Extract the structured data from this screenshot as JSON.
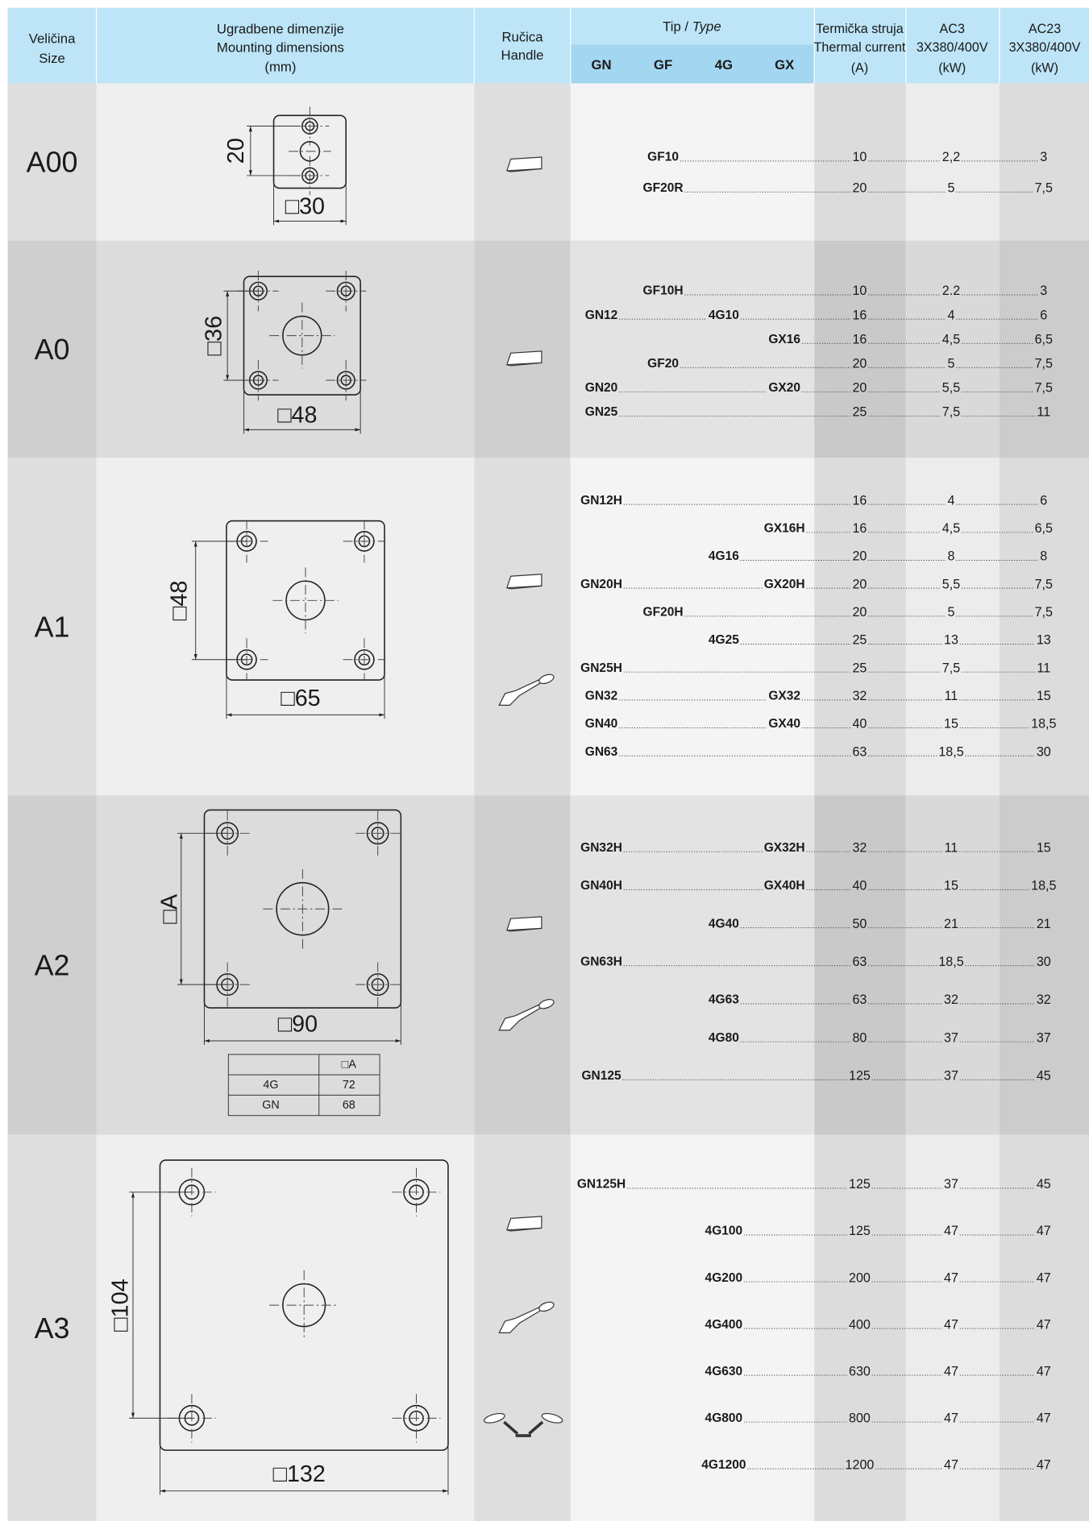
{
  "header": {
    "size": [
      "Veličina",
      "Size"
    ],
    "dimensions": [
      "Ugradbene dimenzije",
      "Mounting dimensions",
      "(mm)"
    ],
    "handle": [
      "Ručica",
      "Handle"
    ],
    "type": {
      "tip": "Tip /",
      "type": "Type"
    },
    "type_columns": [
      "GN",
      "GF",
      "4G",
      "GX"
    ],
    "thermal": [
      "Termička struja",
      "Thermal current",
      "(A)"
    ],
    "ac3": [
      "AC3",
      "3X380/400V",
      "(kW)"
    ],
    "ac23": [
      "AC23",
      "3X380/400V",
      "(kW)"
    ]
  },
  "sections": [
    {
      "size": "A00",
      "dims": {
        "vertical": "20",
        "horizontal": "□30"
      },
      "rows": [
        {
          "GF": "GF10",
          "thermal": "10",
          "ac3": "2,2",
          "ac23": "3"
        },
        {
          "GF": "GF20R",
          "thermal": "20",
          "ac3": "5",
          "ac23": "7,5"
        }
      ]
    },
    {
      "size": "A0",
      "dims": {
        "vertical": "□36",
        "horizontal": "□48"
      },
      "rows": [
        {
          "GF": "GF10H",
          "thermal": "10",
          "ac3": "2.2",
          "ac23": "3"
        },
        {
          "GN": "GN12",
          "4G": "4G10",
          "thermal": "16",
          "ac3": "4",
          "ac23": "6"
        },
        {
          "GX": "GX16",
          "thermal": "16",
          "ac3": "4,5",
          "ac23": "6,5"
        },
        {
          "GF": "GF20",
          "thermal": "20",
          "ac3": "5",
          "ac23": "7,5"
        },
        {
          "GN": "GN20",
          "GX": "GX20",
          "thermal": "20",
          "ac3": "5,5",
          "ac23": "7,5"
        },
        {
          "GN": "GN25",
          "thermal": "25",
          "ac3": "7,5",
          "ac23": "11"
        }
      ]
    },
    {
      "size": "A1",
      "dims": {
        "vertical": "□48",
        "horizontal": "□65"
      },
      "rows": [
        {
          "GN": "GN12H",
          "thermal": "16",
          "ac3": "4",
          "ac23": "6"
        },
        {
          "GX": "GX16H",
          "thermal": "16",
          "ac3": "4,5",
          "ac23": "6,5"
        },
        {
          "4G": "4G16",
          "thermal": "20",
          "ac3": "8",
          "ac23": "8"
        },
        {
          "GN": "GN20H",
          "GX": "GX20H",
          "thermal": "20",
          "ac3": "5,5",
          "ac23": "7,5"
        },
        {
          "GF": "GF20H",
          "thermal": "20",
          "ac3": "5",
          "ac23": "7,5"
        },
        {
          "4G": "4G25",
          "thermal": "25",
          "ac3": "13",
          "ac23": "13"
        },
        {
          "GN": "GN25H",
          "thermal": "25",
          "ac3": "7,5",
          "ac23": "11"
        },
        {
          "GN": "GN32",
          "GX": "GX32",
          "thermal": "32",
          "ac3": "11",
          "ac23": "15"
        },
        {
          "GN": "GN40",
          "GX": "GX40",
          "thermal": "40",
          "ac3": "15",
          "ac23": "18,5"
        },
        {
          "GN": "GN63",
          "thermal": "63",
          "ac3": "18,5",
          "ac23": "30"
        }
      ]
    },
    {
      "size": "A2",
      "dims": {
        "vertical": "□A",
        "horizontal": "□90"
      },
      "dims_table": {
        "header": "□A",
        "rows": [
          [
            "4G",
            "72"
          ],
          [
            "GN",
            "68"
          ]
        ]
      },
      "rows": [
        {
          "GN": "GN32H",
          "GX": "GX32H",
          "thermal": "32",
          "ac3": "11",
          "ac23": "15"
        },
        {
          "GN": "GN40H",
          "GX": "GX40H",
          "thermal": "40",
          "ac3": "15",
          "ac23": "18,5"
        },
        {
          "4G": "4G40",
          "thermal": "50",
          "ac3": "21",
          "ac23": "21"
        },
        {
          "GN": "GN63H",
          "thermal": "63",
          "ac3": "18,5",
          "ac23": "30"
        },
        {
          "4G": "4G63",
          "thermal": "63",
          "ac3": "32",
          "ac23": "32"
        },
        {
          "4G": "4G80",
          "thermal": "80",
          "ac3": "37",
          "ac23": "37"
        },
        {
          "GN": "GN125",
          "thermal": "125",
          "ac3": "37",
          "ac23": "45"
        }
      ]
    },
    {
      "size": "A3",
      "dims": {
        "vertical": "□104",
        "horizontal": "□132"
      },
      "rows": [
        {
          "GN": "GN125H",
          "thermal": "125",
          "ac3": "37",
          "ac23": "45"
        },
        {
          "4G": "4G100",
          "thermal": "125",
          "ac3": "47",
          "ac23": "47"
        },
        {
          "4G": "4G200",
          "thermal": "200",
          "ac3": "47",
          "ac23": "47"
        },
        {
          "4G": "4G400",
          "thermal": "400",
          "ac3": "47",
          "ac23": "47"
        },
        {
          "4G": "4G630",
          "thermal": "630",
          "ac3": "47",
          "ac23": "47"
        },
        {
          "4G": "4G800",
          "thermal": "800",
          "ac3": "47",
          "ac23": "47"
        },
        {
          "4G": "4G1200",
          "thermal": "1200",
          "ac3": "47",
          "ac23": "47"
        }
      ]
    }
  ]
}
